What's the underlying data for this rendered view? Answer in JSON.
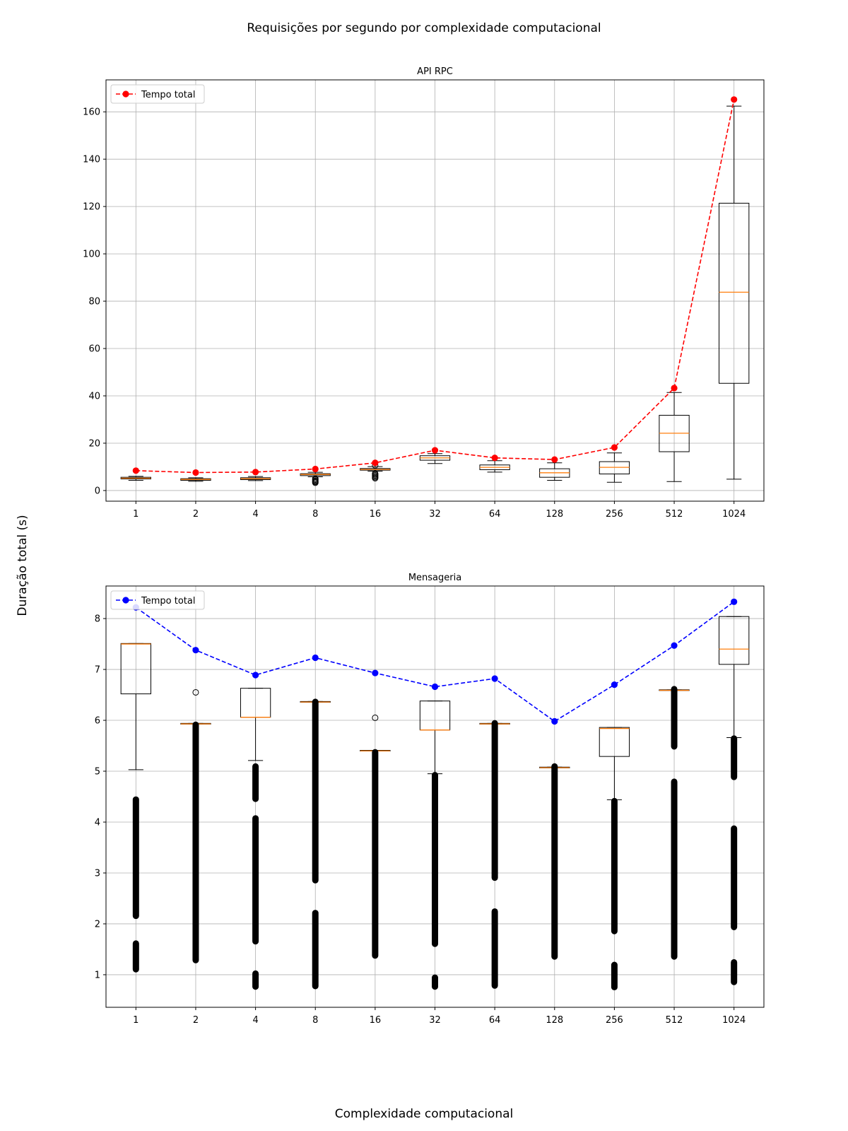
{
  "figure": {
    "suptitle": "Requisições por segundo por complexidade computacional",
    "supxlabel": "Complexidade computacional",
    "supylabel": "Duração total (s)"
  },
  "chart_data": [
    {
      "type": "box",
      "title": "API RPC",
      "categories": [
        "1",
        "2",
        "4",
        "8",
        "16",
        "32",
        "64",
        "128",
        "256",
        "512",
        "1024"
      ],
      "ylim": [
        -4.5,
        173.5
      ],
      "yticks": [
        0,
        20,
        40,
        60,
        80,
        100,
        120,
        140,
        160
      ],
      "grid": true,
      "legend_position": "top-left",
      "line_color": "#ff0000",
      "boxes": [
        {
          "whislo": 4.3,
          "q1": 4.9,
          "med": 5.2,
          "q3": 5.6,
          "whishi": 6.0,
          "fliers": []
        },
        {
          "whislo": 3.9,
          "q1": 4.3,
          "med": 4.7,
          "q3": 5.0,
          "whishi": 5.4,
          "fliers": []
        },
        {
          "whislo": 4.2,
          "q1": 4.6,
          "med": 5.0,
          "q3": 5.4,
          "whishi": 5.9,
          "fliers": []
        },
        {
          "whislo": 5.8,
          "q1": 6.3,
          "med": 6.8,
          "q3": 7.1,
          "whishi": 7.7,
          "fliers": [
            3.3,
            3.6,
            3.9,
            4.2,
            4.6,
            5.0
          ]
        },
        {
          "whislo": 8.2,
          "q1": 8.6,
          "med": 8.9,
          "q3": 9.3,
          "whishi": 10.1,
          "fliers": [
            5.2,
            5.6,
            6.0,
            6.4,
            6.8,
            7.2,
            10.6
          ]
        },
        {
          "whislo": 11.4,
          "q1": 12.8,
          "med": 13.8,
          "q3": 14.7,
          "whishi": 15.6,
          "fliers": []
        },
        {
          "whislo": 7.8,
          "q1": 8.8,
          "med": 9.8,
          "q3": 10.8,
          "whishi": 12.6,
          "fliers": []
        },
        {
          "whislo": 4.3,
          "q1": 5.6,
          "med": 7.5,
          "q3": 9.2,
          "whishi": 11.7,
          "fliers": []
        },
        {
          "whislo": 3.5,
          "q1": 7.0,
          "med": 9.8,
          "q3": 12.2,
          "whishi": 15.9,
          "fliers": []
        },
        {
          "whislo": 3.8,
          "q1": 16.4,
          "med": 24.2,
          "q3": 31.8,
          "whishi": 41.4,
          "fliers": []
        },
        {
          "whislo": 4.8,
          "q1": 45.3,
          "med": 83.8,
          "q3": 121.4,
          "whishi": 162.4,
          "fliers": []
        }
      ],
      "series": [
        {
          "name": "Tempo total",
          "values": [
            8.4,
            7.6,
            7.8,
            9.1,
            11.7,
            17.0,
            13.8,
            13.1,
            18.2,
            43.3,
            165.2
          ]
        }
      ]
    },
    {
      "type": "box",
      "title": "Mensageria",
      "categories": [
        "1",
        "2",
        "4",
        "8",
        "16",
        "32",
        "64",
        "128",
        "256",
        "512",
        "1024"
      ],
      "ylim": [
        0.36,
        8.64
      ],
      "yticks": [
        1,
        2,
        3,
        4,
        5,
        6,
        7,
        8
      ],
      "grid": true,
      "legend_position": "top-left",
      "line_color": "#0000ff",
      "boxes": [
        {
          "whislo": 5.03,
          "q1": 6.52,
          "med": 7.5,
          "q3": 7.51,
          "whishi": 7.51,
          "flier_ranges": [
            [
              2.15,
              4.45
            ],
            [
              1.1,
              1.62
            ]
          ]
        },
        {
          "whislo": 5.93,
          "q1": 5.93,
          "med": 5.93,
          "q3": 5.94,
          "whishi": 5.94,
          "flier_ranges": [
            [
              1.28,
              5.92
            ]
          ],
          "fliers": [
            6.55
          ]
        },
        {
          "whislo": 5.21,
          "q1": 6.06,
          "med": 6.06,
          "q3": 6.63,
          "whishi": 6.63,
          "flier_ranges": [
            [
              4.45,
              5.1
            ],
            [
              1.65,
              4.08
            ],
            [
              0.76,
              1.03
            ]
          ]
        },
        {
          "whislo": 6.36,
          "q1": 6.36,
          "med": 6.36,
          "q3": 6.37,
          "whishi": 6.37,
          "flier_ranges": [
            [
              2.85,
              6.37
            ],
            [
              0.77,
              2.22
            ]
          ]
        },
        {
          "whislo": 5.4,
          "q1": 5.4,
          "med": 5.4,
          "q3": 5.41,
          "whishi": 5.41,
          "flier_ranges": [
            [
              1.37,
              5.38
            ]
          ],
          "fliers": [
            6.05
          ]
        },
        {
          "whislo": 4.95,
          "q1": 5.81,
          "med": 5.81,
          "q3": 6.38,
          "whishi": 6.38,
          "flier_ranges": [
            [
              1.6,
              4.93
            ],
            [
              0.76,
              0.95
            ]
          ]
        },
        {
          "whislo": 5.93,
          "q1": 5.93,
          "med": 5.93,
          "q3": 5.94,
          "whishi": 5.94,
          "flier_ranges": [
            [
              2.9,
              5.95
            ],
            [
              0.78,
              2.25
            ]
          ]
        },
        {
          "whislo": 5.07,
          "q1": 5.07,
          "med": 5.07,
          "q3": 5.08,
          "whishi": 5.08,
          "flier_ranges": [
            [
              1.35,
              5.1
            ]
          ]
        },
        {
          "whislo": 4.44,
          "q1": 5.29,
          "med": 5.84,
          "q3": 5.86,
          "whishi": 5.86,
          "flier_ranges": [
            [
              1.85,
              4.42
            ],
            [
              0.75,
              1.2
            ]
          ]
        },
        {
          "whislo": 6.59,
          "q1": 6.59,
          "med": 6.59,
          "q3": 6.6,
          "whishi": 6.6,
          "flier_ranges": [
            [
              5.48,
              6.62
            ],
            [
              1.35,
              4.8
            ]
          ]
        },
        {
          "whislo": 5.66,
          "q1": 7.1,
          "med": 7.4,
          "q3": 8.04,
          "whishi": 8.04,
          "flier_ranges": [
            [
              4.88,
              5.65
            ],
            [
              1.93,
              3.88
            ],
            [
              0.85,
              1.25
            ]
          ]
        }
      ],
      "series": [
        {
          "name": "Tempo total",
          "values": [
            8.22,
            7.38,
            6.89,
            7.23,
            6.93,
            6.66,
            6.82,
            5.98,
            6.7,
            7.47,
            8.33
          ]
        }
      ]
    }
  ]
}
